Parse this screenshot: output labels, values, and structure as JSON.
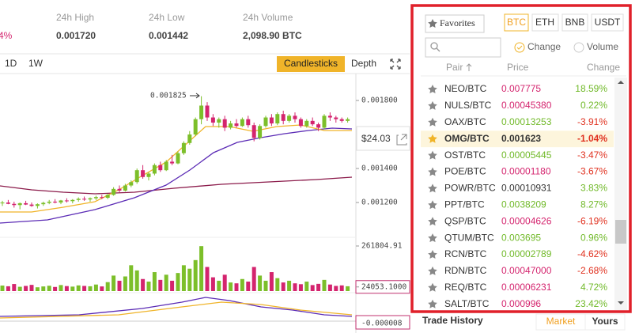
{
  "header": {
    "change": "4%",
    "stats": [
      {
        "label": "24h High",
        "value": "0.001720"
      },
      {
        "label": "24h Low",
        "value": "0.001442"
      },
      {
        "label": "24h Volume",
        "value": "2,098.90 BTC"
      }
    ]
  },
  "toolbar": {
    "intervals": [
      "1D",
      "1W"
    ],
    "views": [
      "Candlesticks",
      "Depth"
    ]
  },
  "chart": {
    "annotation": "0.001825",
    "price_badge": "$24.03",
    "up_color": "#7cbf2a",
    "down_color": "#d4246e",
    "price_ylim": [
      0.001042,
      0.001949
    ],
    "price_ticks": [
      {
        "value": 0.0018,
        "label": "0.001800"
      },
      {
        "value": 0.0014,
        "label": "0.001400"
      },
      {
        "value": 0.0012,
        "label": "0.001200"
      }
    ],
    "volume_ylim": [
      0,
      261804.91
    ],
    "volume_ticks": [
      261804.91,
      {
        "value": 24053.1,
        "label": "24053.1000"
      }
    ],
    "macd_label": "-0.000008",
    "candles": [
      [
        0.001195,
        0.00121,
        0.00118,
        0.0012
      ],
      [
        0.0012,
        0.001215,
        0.00119,
        0.001192
      ],
      [
        0.001192,
        0.001205,
        0.00117,
        0.001185
      ],
      [
        0.001185,
        0.0012,
        0.00116,
        0.001196
      ],
      [
        0.001196,
        0.00121,
        0.001185,
        0.001188
      ],
      [
        0.001188,
        0.0012,
        0.001175,
        0.00118
      ],
      [
        0.00118,
        0.001195,
        0.001165,
        0.00119
      ],
      [
        0.00119,
        0.001205,
        0.00118,
        0.001198
      ],
      [
        0.001198,
        0.001215,
        0.00119,
        0.001205
      ],
      [
        0.001205,
        0.00122,
        0.001195,
        0.0012
      ],
      [
        0.0012,
        0.001215,
        0.00119,
        0.001212
      ],
      [
        0.001212,
        0.001225,
        0.0012,
        0.001208
      ],
      [
        0.001208,
        0.00122,
        0.001195,
        0.001215
      ],
      [
        0.001215,
        0.00123,
        0.001205,
        0.001222
      ],
      [
        0.001222,
        0.001235,
        0.00121,
        0.001218
      ],
      [
        0.001218,
        0.00123,
        0.001205,
        0.001225
      ],
      [
        0.001225,
        0.00124,
        0.001215,
        0.001232
      ],
      [
        0.001232,
        0.001245,
        0.00122,
        0.001228
      ],
      [
        0.001228,
        0.00125,
        0.00122,
        0.001245
      ],
      [
        0.001245,
        0.00129,
        0.00124,
        0.00128
      ],
      [
        0.00128,
        0.0013,
        0.00126,
        0.00127
      ],
      [
        0.00127,
        0.00131,
        0.001265,
        0.0013
      ],
      [
        0.0013,
        0.00133,
        0.00129,
        0.00132
      ],
      [
        0.00132,
        0.0014,
        0.00131,
        0.00139
      ],
      [
        0.00139,
        0.00142,
        0.00134,
        0.00135
      ],
      [
        0.00135,
        0.00138,
        0.00133,
        0.00137
      ],
      [
        0.00137,
        0.00143,
        0.00136,
        0.00142
      ],
      [
        0.00142,
        0.00144,
        0.00138,
        0.00139
      ],
      [
        0.00139,
        0.00145,
        0.001385,
        0.00144
      ],
      [
        0.00144,
        0.00148,
        0.00142,
        0.00143
      ],
      [
        0.00143,
        0.0015,
        0.001425,
        0.00149
      ],
      [
        0.00149,
        0.00156,
        0.00148,
        0.00155
      ],
      [
        0.00155,
        0.00162,
        0.00154,
        0.0016
      ],
      [
        0.0016,
        0.0017,
        0.00159,
        0.00169
      ],
      [
        0.00169,
        0.001825,
        0.00166,
        0.00177
      ],
      [
        0.00177,
        0.00179,
        0.00168,
        0.0017
      ],
      [
        0.0017,
        0.00172,
        0.00165,
        0.00167
      ],
      [
        0.00167,
        0.0017,
        0.00164,
        0.00169
      ],
      [
        0.00169,
        0.00171,
        0.00162,
        0.00164
      ],
      [
        0.00164,
        0.00168,
        0.00163,
        0.001665
      ],
      [
        0.001665,
        0.00169,
        0.00164,
        0.00165
      ],
      [
        0.00165,
        0.0017,
        0.001645,
        0.00169
      ],
      [
        0.00169,
        0.00171,
        0.00164,
        0.001655
      ],
      [
        0.001655,
        0.00167,
        0.00156,
        0.00158
      ],
      [
        0.00158,
        0.00166,
        0.00157,
        0.00165
      ],
      [
        0.00165,
        0.00171,
        0.00164,
        0.0017
      ],
      [
        0.0017,
        0.00172,
        0.00165,
        0.001665
      ],
      [
        0.001665,
        0.00173,
        0.001655,
        0.00172
      ],
      [
        0.00172,
        0.00174,
        0.00166,
        0.00168
      ],
      [
        0.00168,
        0.00172,
        0.00167,
        0.00171
      ],
      [
        0.00171,
        0.00173,
        0.00167,
        0.00169
      ],
      [
        0.00169,
        0.0017,
        0.00164,
        0.00165
      ],
      [
        0.00165,
        0.00169,
        0.00164,
        0.00168
      ],
      [
        0.00168,
        0.0017,
        0.00165,
        0.00166
      ],
      [
        0.00166,
        0.00167,
        0.00162,
        0.00164
      ],
      [
        0.00164,
        0.00172,
        0.00163,
        0.00171
      ],
      [
        0.00171,
        0.00173,
        0.00168,
        0.0017
      ],
      [
        0.0017,
        0.00171,
        0.00167,
        0.00169
      ],
      [
        0.00169,
        0.0017,
        0.00167,
        0.00168
      ],
      [
        0.00168,
        0.0017,
        0.00167,
        0.00169
      ]
    ],
    "volumes": [
      32000,
      28000,
      41000,
      25000,
      30000,
      36000,
      22000,
      27000,
      31000,
      24000,
      35000,
      29000,
      26000,
      33000,
      30000,
      28000,
      38000,
      27000,
      52000,
      90000,
      60000,
      85000,
      150000,
      120000,
      70000,
      55000,
      110000,
      65000,
      95000,
      60000,
      105000,
      150000,
      130000,
      180000,
      261000,
      140000,
      80000,
      60000,
      95000,
      50000,
      45000,
      70000,
      55000,
      140000,
      90000,
      60000,
      110000,
      75000,
      50000,
      60000,
      45000,
      40000,
      55000,
      35000,
      42000,
      65000,
      38000,
      30000,
      33000,
      28000
    ]
  },
  "market": {
    "favorites": "Favorites",
    "quotes": [
      "BTC",
      "ETH",
      "BNB",
      "USDT"
    ],
    "sort_options": [
      "Change",
      "Volume"
    ],
    "columns": [
      "Pair",
      "Price",
      "Change"
    ],
    "rows": [
      {
        "pair": "NEO/BTC",
        "price": "0.007775",
        "change": "18.59%",
        "price_color": "#d4246e",
        "change_color": "#70b928"
      },
      {
        "pair": "NULS/BTC",
        "price": "0.00045380",
        "change": "0.22%",
        "price_color": "#d4246e",
        "change_color": "#70b928"
      },
      {
        "pair": "OAX/BTC",
        "price": "0.00013253",
        "change": "-3.91%",
        "price_color": "#70b928",
        "change_color": "#e0301e"
      },
      {
        "pair": "OMG/BTC",
        "price": "0.001623",
        "change": "-1.04%",
        "price_color": "#333333",
        "change_color": "#e0301e",
        "selected": true
      },
      {
        "pair": "OST/BTC",
        "price": "0.00005445",
        "change": "-3.47%",
        "price_color": "#70b928",
        "change_color": "#e0301e"
      },
      {
        "pair": "POE/BTC",
        "price": "0.00001180",
        "change": "-3.67%",
        "price_color": "#d4246e",
        "change_color": "#e0301e"
      },
      {
        "pair": "POWR/BTC",
        "price": "0.00010931",
        "change": "3.83%",
        "price_color": "#333333",
        "change_color": "#70b928"
      },
      {
        "pair": "PPT/BTC",
        "price": "0.0038209",
        "change": "8.27%",
        "price_color": "#70b928",
        "change_color": "#70b928"
      },
      {
        "pair": "QSP/BTC",
        "price": "0.00004626",
        "change": "-6.19%",
        "price_color": "#d4246e",
        "change_color": "#e0301e"
      },
      {
        "pair": "QTUM/BTC",
        "price": "0.003695",
        "change": "0.96%",
        "price_color": "#70b928",
        "change_color": "#70b928"
      },
      {
        "pair": "RCN/BTC",
        "price": "0.00002789",
        "change": "-4.62%",
        "price_color": "#70b928",
        "change_color": "#e0301e"
      },
      {
        "pair": "RDN/BTC",
        "price": "0.00047000",
        "change": "-2.68%",
        "price_color": "#d4246e",
        "change_color": "#e0301e"
      },
      {
        "pair": "REQ/BTC",
        "price": "0.00006231",
        "change": "4.72%",
        "price_color": "#d4246e",
        "change_color": "#70b928"
      },
      {
        "pair": "SALT/BTC",
        "price": "0.000996",
        "change": "23.42%",
        "price_color": "#d4246e",
        "change_color": "#70b928"
      }
    ]
  },
  "trade_history": {
    "title": "Trade History",
    "tabs": [
      "Market",
      "Yours"
    ]
  }
}
